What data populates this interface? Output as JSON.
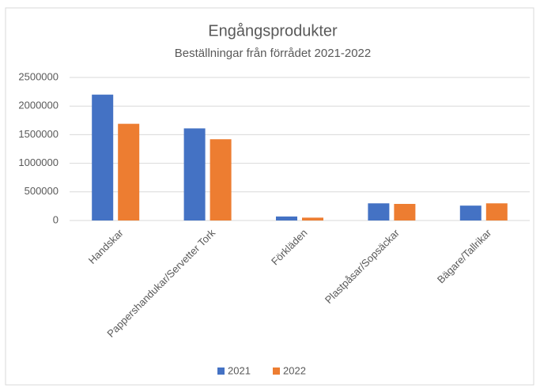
{
  "chart_data": {
    "type": "bar",
    "title": "Engångsprodukter",
    "subtitle": "Beställningar från förrådet 2021-2022",
    "categories": [
      "Handskar",
      "Pappershandukar/Servetter Tork",
      "Förkläden",
      "Plastpåsar/Sopsäckar",
      "Bägare/Tallrikar"
    ],
    "series": [
      {
        "name": "2021",
        "color": "#4472c4",
        "values": [
          2200000,
          1610000,
          70000,
          300000,
          260000
        ]
      },
      {
        "name": "2022",
        "color": "#ed7d31",
        "values": [
          1690000,
          1420000,
          50000,
          290000,
          300000
        ]
      }
    ],
    "ylim": [
      0,
      2500000
    ],
    "yticks": [
      0,
      500000,
      1000000,
      1500000,
      2000000,
      2500000
    ],
    "grid": true,
    "legend": "bottom"
  }
}
